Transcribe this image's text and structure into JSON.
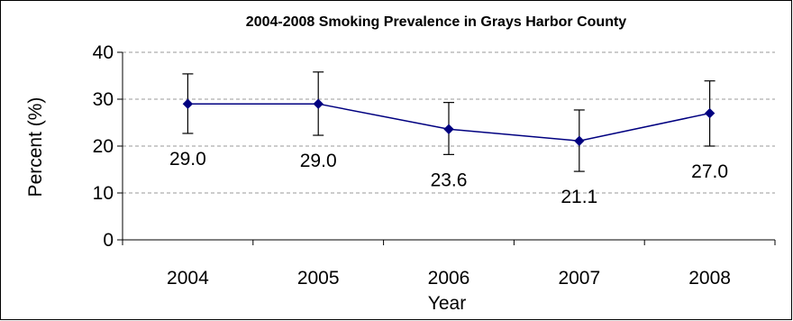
{
  "chart_data": {
    "type": "line",
    "title": "2004-2008 Smoking Prevalence in Grays Harbor County",
    "xlabel": "Year",
    "ylabel": "Percent (%)",
    "ylim": [
      0,
      40
    ],
    "yticks": [
      0,
      10,
      20,
      30,
      40
    ],
    "grid": "horizontal-dashed",
    "legend": "none",
    "categories": [
      "2004",
      "2005",
      "2006",
      "2007",
      "2008"
    ],
    "series": [
      {
        "values": [
          29.0,
          29.0,
          23.6,
          21.1,
          27.0
        ],
        "labels": [
          "29.0",
          "29.0",
          "23.6",
          "21.1",
          "27.0"
        ],
        "error_low": [
          22.7,
          22.3,
          18.2,
          14.6,
          20.0
        ],
        "error_high": [
          35.4,
          35.8,
          29.3,
          27.7,
          33.9
        ],
        "color": "#000080"
      }
    ]
  }
}
